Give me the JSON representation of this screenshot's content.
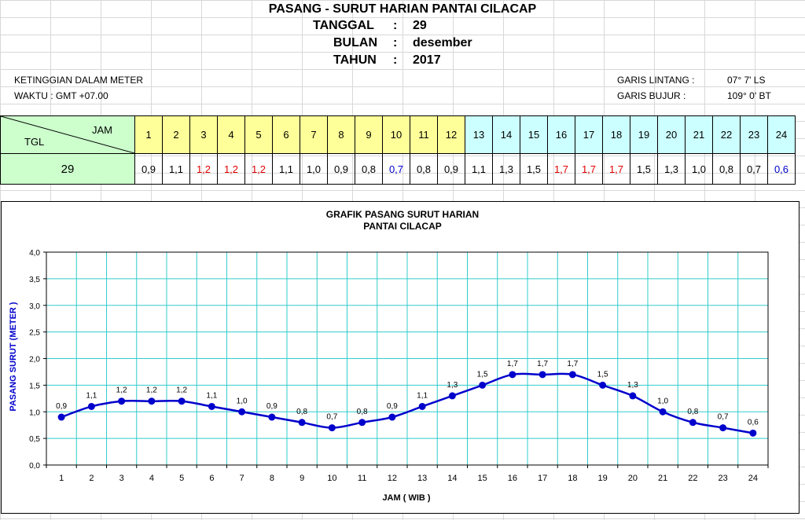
{
  "header": {
    "title": "PASANG - SURUT HARIAN PANTAI CILACAP",
    "tanggal_label": "TANGGAL",
    "tanggal_value": "29",
    "bulan_label": "BULAN",
    "bulan_value": "desember",
    "tahun_label": "TAHUN",
    "tahun_value": "2017",
    "sep": ":"
  },
  "info": {
    "height_unit": "KETINGGIAN DALAM METER",
    "time_zone": "WAKTU : GMT +07.00",
    "lat_label": "GARIS LINTANG :",
    "lat_value": "07° 7' LS",
    "lon_label": "GARIS BUJUR :",
    "lon_value": "109° 0' BT"
  },
  "table": {
    "jam_label": "JAM",
    "tgl_label": "TGL",
    "date": "29",
    "hours": [
      "1",
      "2",
      "3",
      "4",
      "5",
      "6",
      "7",
      "8",
      "9",
      "10",
      "11",
      "12",
      "13",
      "14",
      "15",
      "16",
      "17",
      "18",
      "19",
      "20",
      "21",
      "22",
      "23",
      "24"
    ],
    "values": [
      "0,9",
      "1,1",
      "1,2",
      "1,2",
      "1,2",
      "1,1",
      "1,0",
      "0,9",
      "0,8",
      "0,7",
      "0,8",
      "0,9",
      "1,1",
      "1,3",
      "1,5",
      "1,7",
      "1,7",
      "1,7",
      "1,5",
      "1,3",
      "1,0",
      "0,8",
      "0,7",
      "0,6"
    ],
    "value_colors": [
      "",
      "",
      "red",
      "red",
      "red",
      "",
      "",
      "",
      "",
      "blue",
      "",
      "",
      "",
      "",
      "",
      "red",
      "red",
      "red",
      "",
      "",
      "",
      "",
      "",
      "blue"
    ],
    "colors": {
      "am": "#ffff99",
      "pm": "#ccffff",
      "date": "#ccffcc",
      "high": "#e00000",
      "low": "#0000cc"
    }
  },
  "chart_data": {
    "type": "line",
    "title": "GRAFIK PASANG SURUT HARIAN",
    "subtitle": "PANTAI CILACAP",
    "xlabel": "JAM ( WIB )",
    "ylabel": "PASANG SURUT (METER )",
    "x": [
      1,
      2,
      3,
      4,
      5,
      6,
      7,
      8,
      9,
      10,
      11,
      12,
      13,
      14,
      15,
      16,
      17,
      18,
      19,
      20,
      21,
      22,
      23,
      24
    ],
    "series": [
      {
        "name": "Pasang Surut",
        "values": [
          0.9,
          1.1,
          1.2,
          1.2,
          1.2,
          1.1,
          1.0,
          0.9,
          0.8,
          0.7,
          0.8,
          0.9,
          1.1,
          1.3,
          1.5,
          1.7,
          1.7,
          1.7,
          1.5,
          1.3,
          1.0,
          0.8,
          0.7,
          0.6
        ],
        "labels": [
          "0,9",
          "1,1",
          "1,2",
          "1,2",
          "1,2",
          "1,1",
          "1,0",
          "0,9",
          "0,8",
          "0,7",
          "0,8",
          "0,9",
          "1,1",
          "1,3",
          "1,5",
          "1,7",
          "1,7",
          "1,7",
          "1,5",
          "1,3",
          "1,0",
          "0,8",
          "0,7",
          "0,6"
        ]
      }
    ],
    "ylim": [
      0,
      4
    ],
    "yticks": [
      "0,0",
      "0,5",
      "1,0",
      "1,5",
      "2,0",
      "2,5",
      "3,0",
      "3,5",
      "4,0"
    ],
    "grid": true,
    "colors": {
      "line": "#0000cc",
      "grid": "#33cccc",
      "axis": "#000000"
    }
  }
}
